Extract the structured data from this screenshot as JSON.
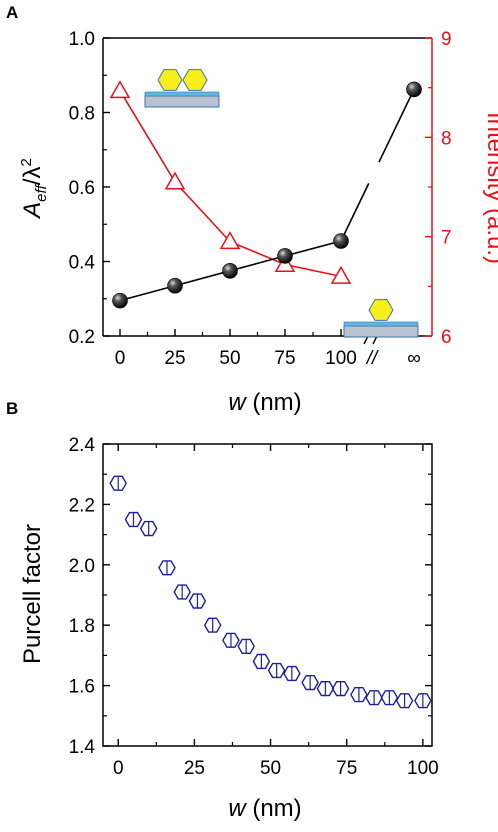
{
  "chart_data": [
    {
      "panel": "A",
      "type": "line",
      "xlabel_var": "w",
      "xlabel_unit": " (nm)",
      "x_categories": [
        "0",
        "25",
        "50",
        "75",
        "100",
        "∞"
      ],
      "x_break_symbol": "//",
      "ylabel_left": {
        "base": "A",
        "sub": "eff",
        "rest": "/λ",
        "sup": "2"
      },
      "ylabel_right": "Intensity (a.u.)",
      "ylim_left": [
        0.2,
        1.0
      ],
      "yticks_left": [
        "0.2",
        "0.4",
        "0.6",
        "0.8",
        "1.0"
      ],
      "ylim_right": [
        6,
        9
      ],
      "yticks_right": [
        "6",
        "7",
        "8",
        "9"
      ],
      "series": [
        {
          "axis": "left",
          "color": "#000000",
          "marker": "filled-sphere",
          "x": [
            "0",
            "25",
            "50",
            "75",
            "100",
            "∞"
          ],
          "values": [
            0.295,
            0.335,
            0.375,
            0.415,
            0.455,
            0.862
          ]
        },
        {
          "axis": "right",
          "color": "#e8101a",
          "marker": "open-triangle",
          "x": [
            "0",
            "25",
            "50",
            "75",
            "100"
          ],
          "values": [
            8.47,
            7.55,
            6.95,
            6.72,
            6.6
          ]
        }
      ],
      "insets": [
        "two-nanoparticle-dimer-on-substrate-icon",
        "single-nanoparticle-on-substrate-icon"
      ],
      "colors": {
        "particle": "#f7ee1c",
        "particle_edge": "#3f72a8",
        "substrate": "#b9c2d1",
        "spacer": "#5db9e3"
      }
    },
    {
      "panel": "B",
      "type": "scatter",
      "xlabel_var": "w",
      "xlabel_unit": " (nm)",
      "ylabel": "Purcell factor",
      "xlim": [
        -5,
        103
      ],
      "xticks": [
        "0",
        "25",
        "50",
        "75",
        "100"
      ],
      "ylim": [
        1.4,
        2.4
      ],
      "yticks": [
        "1.4",
        "1.6",
        "1.8",
        "2.0",
        "2.2",
        "2.4"
      ],
      "marker": "open-hexagon",
      "color": "#1f1f9e",
      "x": [
        0,
        5,
        10,
        16,
        21,
        26,
        31,
        37,
        42,
        47,
        52,
        57,
        63,
        68,
        73,
        79,
        84,
        89,
        94,
        100
      ],
      "values": [
        2.27,
        2.15,
        2.12,
        1.99,
        1.91,
        1.88,
        1.8,
        1.75,
        1.73,
        1.68,
        1.65,
        1.64,
        1.61,
        1.59,
        1.59,
        1.57,
        1.56,
        1.56,
        1.55,
        1.55
      ]
    }
  ]
}
